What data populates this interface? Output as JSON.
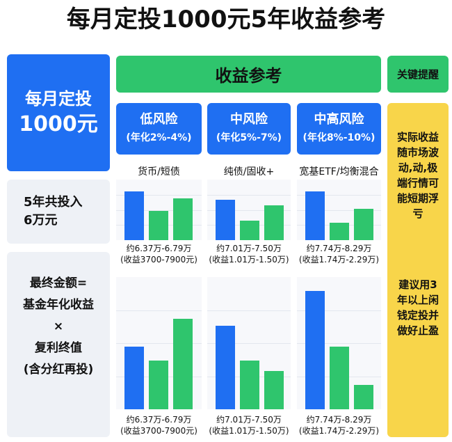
{
  "title": "每月定投1000元5年收益参考",
  "left": {
    "monthly": [
      "每月定投",
      "1000元"
    ],
    "total": [
      "5年共投入",
      "6万元"
    ],
    "formula": [
      "最终金额=",
      "基金年化收益",
      "×",
      "复利终值",
      "(含分红再投)"
    ]
  },
  "header": "收益参考",
  "reminder_header": "关键提醒",
  "risks": [
    {
      "name": "低风险",
      "range": "(年化2%-4%)",
      "assets": "货币/短债",
      "amount": "约6.37万-6.79万",
      "gain": "(收益3700-7900元)"
    },
    {
      "name": "中风险",
      "range": "(年化5%-7%)",
      "assets": "纯债/固收+",
      "amount": "约7.01万-7.50万",
      "gain": "(收益1.01万-1.50万)"
    },
    {
      "name": "中高风险",
      "range": "(年化8%-10%)",
      "assets": "宽基ETF/均衡混合",
      "amount": "约7.74万-8.29万",
      "gain": "(收益1.74万-2.29万)"
    }
  ],
  "reminders": [
    "实际收益随市场波动,动,极端行情可能短期浮亏",
    "建议用3年以上闲钱定投并做好止盈"
  ]
}
